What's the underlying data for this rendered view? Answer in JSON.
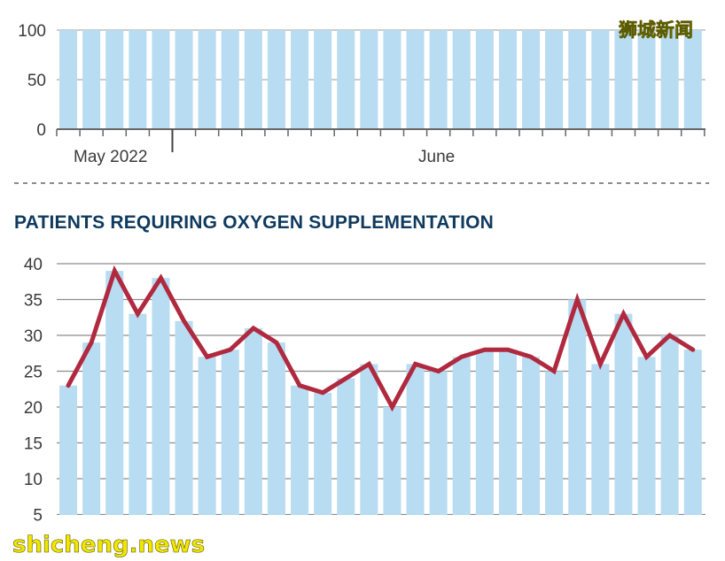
{
  "watermarks": {
    "top_right": "狮城新闻",
    "bottom_left": "shicheng.news"
  },
  "chart_data": [
    {
      "type": "bar",
      "title": "",
      "yticks": [
        0,
        50,
        100
      ],
      "ylim": [
        0,
        100
      ],
      "bar_count": 28,
      "bar_value": 100,
      "x_month_labels": [
        "May 2022",
        "June"
      ],
      "colors": {
        "bar": "#b8dcf1",
        "axis": "#666666",
        "grid": "#999999"
      }
    },
    {
      "type": "line",
      "title": "PATIENTS REQUIRING OXYGEN SUPPLEMENTATION",
      "yticks": [
        5,
        10,
        15,
        20,
        25,
        30,
        35,
        40
      ],
      "ylim": [
        5,
        40
      ],
      "values": [
        23,
        29,
        39,
        33,
        38,
        32,
        27,
        28,
        31,
        29,
        23,
        22,
        24,
        26,
        20,
        26,
        25,
        27,
        28,
        28,
        27,
        25,
        35,
        26,
        33,
        27,
        30,
        28
      ],
      "colors": {
        "bar": "#b8dcf1",
        "line": "#b0293f",
        "grid": "#8c8c8c",
        "title": "#0f3a5e"
      }
    }
  ],
  "separator_color": "#8c8c8c"
}
